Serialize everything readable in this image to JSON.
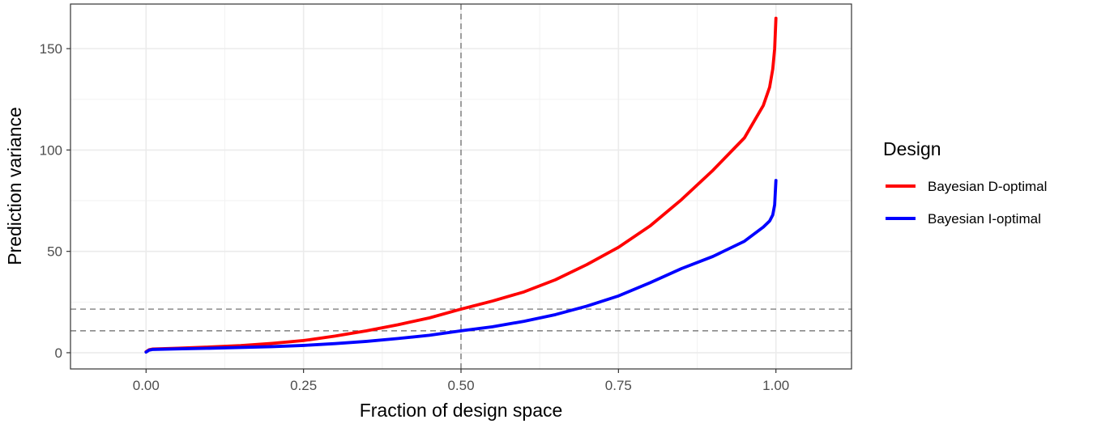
{
  "chart_data": {
    "type": "line",
    "xlabel": "Fraction of design space",
    "ylabel": "Prediction variance",
    "xlim": [
      -0.12,
      1.12
    ],
    "ylim": [
      -8,
      172
    ],
    "x_ticks": [
      "0.00",
      "0.25",
      "0.50",
      "0.75",
      "1.00"
    ],
    "x_tick_values": [
      0,
      0.25,
      0.5,
      0.75,
      1.0
    ],
    "y_ticks": [
      "0",
      "50",
      "100",
      "150"
    ],
    "y_tick_values": [
      0,
      50,
      100,
      150
    ],
    "grid": true,
    "legend": {
      "title": "Design",
      "position": "right"
    },
    "reference_lines": {
      "vertical_x": [
        0.5
      ],
      "horizontal_y": [
        21.5,
        10.8
      ],
      "style": "dashed",
      "color": "#666666"
    },
    "series": [
      {
        "name": "Bayesian D-optimal",
        "color": "#ff0000",
        "x": [
          0.0,
          0.005,
          0.01,
          0.05,
          0.1,
          0.15,
          0.2,
          0.25,
          0.3,
          0.35,
          0.4,
          0.45,
          0.5,
          0.55,
          0.6,
          0.65,
          0.7,
          0.75,
          0.8,
          0.85,
          0.9,
          0.95,
          0.98,
          0.99,
          0.995,
          0.998,
          1.0
        ],
        "y": [
          0.5,
          1.5,
          1.8,
          2.2,
          2.8,
          3.5,
          4.6,
          6.0,
          8.2,
          10.8,
          13.8,
          17.2,
          21.5,
          25.5,
          30.0,
          36.0,
          43.5,
          52.0,
          62.5,
          75.5,
          90.0,
          106.0,
          122.0,
          131.0,
          140.0,
          150.0,
          165.0
        ]
      },
      {
        "name": "Bayesian I-optimal",
        "color": "#0000ff",
        "x": [
          0.0,
          0.005,
          0.01,
          0.05,
          0.1,
          0.15,
          0.2,
          0.25,
          0.3,
          0.35,
          0.4,
          0.45,
          0.5,
          0.55,
          0.6,
          0.65,
          0.7,
          0.75,
          0.8,
          0.85,
          0.9,
          0.95,
          0.98,
          0.99,
          0.995,
          0.998,
          1.0
        ],
        "y": [
          0.3,
          1.3,
          1.6,
          1.9,
          2.2,
          2.6,
          3.0,
          3.6,
          4.5,
          5.6,
          7.0,
          8.6,
          10.8,
          12.8,
          15.5,
          18.8,
          23.0,
          28.0,
          34.5,
          41.5,
          47.5,
          55.0,
          62.0,
          65.0,
          68.0,
          73.0,
          85.0
        ]
      }
    ]
  }
}
